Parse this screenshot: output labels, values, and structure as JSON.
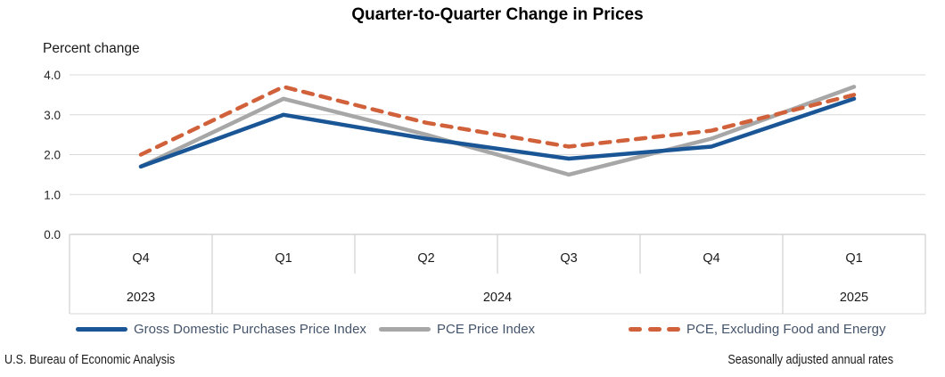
{
  "title": "Quarter-to-Quarter Change in Prices",
  "y_axis_title": "Percent change",
  "footer": {
    "left": "U.S. Bureau of Economic Analysis",
    "right": "Seasonally adjusted annual rates"
  },
  "colors": {
    "gridline": "#d9d9d9",
    "axis_table_line": "#c9c9c9",
    "zero_line": "#bfbfbf",
    "tick_text": "#262626",
    "legend_text": "#44546A"
  },
  "chart_data": {
    "type": "line",
    "title": "Quarter-to-Quarter Change in Prices",
    "xlabel": "",
    "ylabel": "Percent change",
    "ylim": [
      0.0,
      4.0
    ],
    "ytick_labels": [
      "0.0",
      "1.0",
      "2.0",
      "3.0",
      "4.0"
    ],
    "grid": true,
    "legend_position": "bottom",
    "categories": [
      "Q4",
      "Q1",
      "Q2",
      "Q3",
      "Q4",
      "Q1"
    ],
    "year_groups": [
      {
        "label": "2023",
        "span": 1
      },
      {
        "label": "2024",
        "span": 4
      },
      {
        "label": "2025",
        "span": 1
      }
    ],
    "series": [
      {
        "name": "Gross Domestic Purchases Price Index",
        "color": "#1A5696",
        "style": "solid",
        "values": [
          1.7,
          3.0,
          2.4,
          1.9,
          2.2,
          3.4
        ]
      },
      {
        "name": "PCE Price Index",
        "color": "#A7A7A7",
        "style": "solid",
        "values": [
          1.7,
          3.4,
          2.5,
          1.5,
          2.4,
          3.7
        ]
      },
      {
        "name": "PCE, Excluding Food and Energy",
        "color": "#D1613A",
        "style": "dashed",
        "values": [
          2.0,
          3.7,
          2.8,
          2.2,
          2.6,
          3.5
        ]
      }
    ]
  }
}
